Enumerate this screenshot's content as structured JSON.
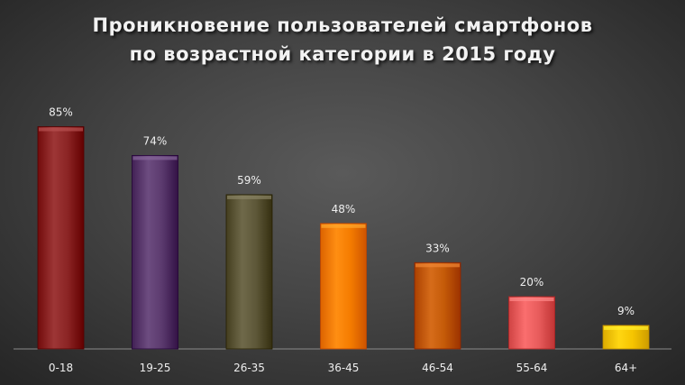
{
  "chart_data": {
    "type": "bar",
    "title_lines": [
      "Проникновение пользователей смартфонов",
      "по возрастной категории в 2015 году"
    ],
    "xlabel": "",
    "ylabel": "",
    "ylim": [
      0,
      100
    ],
    "grid": false,
    "legend": "none",
    "categories": [
      "0-18",
      "19-25",
      "26-35",
      "36-45",
      "46-54",
      "55-64",
      "64+"
    ],
    "values": [
      85,
      74,
      59,
      48,
      33,
      20,
      9
    ],
    "value_labels": [
      "85%",
      "74%",
      "59%",
      "48%",
      "33%",
      "20%",
      "9%"
    ],
    "colors": [
      "#8b2424",
      "#5b3a6e",
      "#5d5738",
      "#f57c00",
      "#c45a08",
      "#e85c5c",
      "#f5c400"
    ]
  }
}
